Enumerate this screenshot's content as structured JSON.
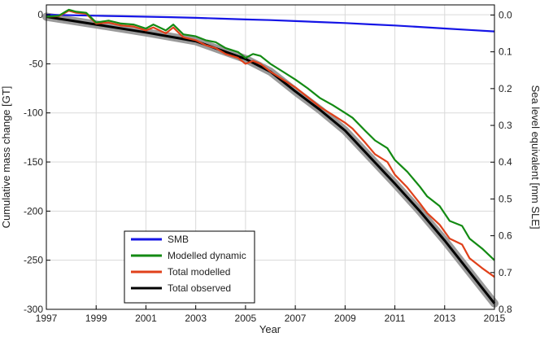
{
  "chart_data": {
    "type": "line",
    "title": "",
    "xlabel": "Year",
    "ylabel": "Cumulative mass change [GT]",
    "y2label": "Sea level equivalent [mm SLE]",
    "xlim": [
      1997,
      2015
    ],
    "ylim": [
      -300,
      10
    ],
    "y2lim": [
      0.8,
      -0.0276
    ],
    "grid": true,
    "legend_position": "lower-left",
    "x_ticks": [
      "1997",
      "1999",
      "2001",
      "2003",
      "2005",
      "2007",
      "2009",
      "2011",
      "2013",
      "2015"
    ],
    "y_ticks": [
      "0",
      "-50",
      "-100",
      "-150",
      "-200",
      "-250",
      "-300"
    ],
    "y2_ticks": [
      "0.0",
      "0.1",
      "0.2",
      "0.3",
      "0.4",
      "0.5",
      "0.6",
      "0.7",
      "0.8"
    ],
    "series": [
      {
        "name": "SMB",
        "color": "#1515e6",
        "x": [
          1997,
          1998,
          1999,
          2000,
          2001,
          2002,
          2003,
          2004,
          2005,
          2006,
          2007,
          2008,
          2009,
          2010,
          2011,
          2012,
          2013,
          2014,
          2015
        ],
        "values": [
          0,
          -0.5,
          -1,
          -1.5,
          -2,
          -2.5,
          -3.2,
          -4,
          -4.8,
          -5.5,
          -6.5,
          -7.5,
          -8.5,
          -9.8,
          -11,
          -12.5,
          -14,
          -15.5,
          -17
        ]
      },
      {
        "name": "Modelled dynamic",
        "color": "#138a13",
        "x": [
          1997,
          1997.5,
          1997.9,
          1998.2,
          1998.6,
          1999,
          1999.5,
          2000,
          2000.5,
          2001,
          2001.3,
          2001.8,
          2002.1,
          2002.5,
          2003,
          2003.4,
          2003.8,
          2004.2,
          2004.7,
          2005,
          2005.3,
          2005.6,
          2006,
          2006.5,
          2007,
          2007.5,
          2008,
          2008.5,
          2009,
          2009.3,
          2009.8,
          2010.2,
          2010.7,
          2011,
          2011.5,
          2012,
          2012.3,
          2012.8,
          2013.2,
          2013.7,
          2014,
          2014.5,
          2015
        ],
        "values": [
          -2,
          -1,
          5,
          3,
          2,
          -8,
          -6,
          -9,
          -10,
          -14,
          -10,
          -16,
          -10,
          -20,
          -22,
          -26,
          -28,
          -34,
          -38,
          -44,
          -40,
          -42,
          -50,
          -58,
          -66,
          -75,
          -85,
          -92,
          -100,
          -105,
          -118,
          -128,
          -136,
          -148,
          -160,
          -175,
          -185,
          -195,
          -210,
          -215,
          -228,
          -238,
          -250
        ]
      },
      {
        "name": "Total modelled",
        "color": "#e0401a",
        "x": [
          1997,
          1997.5,
          1997.9,
          1998.2,
          1998.6,
          1999,
          1999.5,
          2000,
          2000.5,
          2001,
          2001.3,
          2001.8,
          2002.1,
          2002.5,
          2003,
          2003.4,
          2003.8,
          2004.2,
          2004.7,
          2005,
          2005.3,
          2005.6,
          2006,
          2006.5,
          2007,
          2007.5,
          2008,
          2008.5,
          2009,
          2009.3,
          2009.8,
          2010.2,
          2010.7,
          2011,
          2011.5,
          2012,
          2012.3,
          2012.8,
          2013.2,
          2013.7,
          2014,
          2014.5,
          2015
        ],
        "values": [
          -2,
          -1.5,
          4,
          2,
          1,
          -9,
          -8,
          -11,
          -12,
          -16,
          -13,
          -19,
          -13,
          -23,
          -26,
          -31,
          -34,
          -40,
          -44,
          -50,
          -47,
          -50,
          -58,
          -66,
          -74,
          -84,
          -94,
          -102,
          -110,
          -116,
          -130,
          -142,
          -150,
          -163,
          -176,
          -192,
          -202,
          -214,
          -228,
          -234,
          -248,
          -258,
          -267
        ]
      },
      {
        "name": "Total observed",
        "color": "#000000",
        "x": [
          1997,
          1999,
          2001,
          2003,
          2005,
          2006,
          2007,
          2008,
          2009,
          2010,
          2011,
          2012,
          2013,
          2014,
          2015
        ],
        "values": [
          -2,
          -10,
          -18,
          -27,
          -45,
          -58,
          -78,
          -97,
          -118,
          -145,
          -172,
          -200,
          -230,
          -262,
          -294
        ]
      }
    ]
  }
}
